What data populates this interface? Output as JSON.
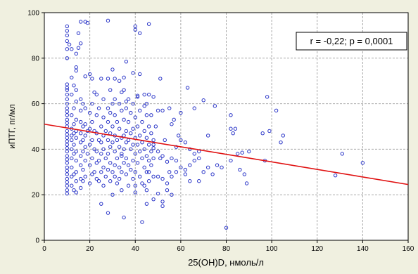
{
  "chart_data": {
    "type": "scatter",
    "title": "",
    "xlabel": "25(OH)D, нмоль/л",
    "ylabel": "иПТГ, пг/мл",
    "xlim": [
      0,
      160
    ],
    "ylim": [
      0,
      100
    ],
    "xticks": [
      0,
      20,
      40,
      60,
      80,
      100,
      120,
      140,
      160
    ],
    "yticks": [
      0,
      20,
      40,
      60,
      80,
      100
    ],
    "grid": true,
    "annotation": "r = -0,22; p = 0,0001",
    "colors": {
      "points": "#2a35c8",
      "fit_line": "#e01010",
      "plot_bg": "#ffffff",
      "grid": "#aaaaaa",
      "page_bg": "#f0f0e0"
    },
    "fit_line": {
      "x": [
        0,
        160
      ],
      "y": [
        51,
        24.5
      ]
    },
    "points": [
      [
        10,
        94.0
      ],
      [
        10,
        92.0
      ],
      [
        10,
        90.0
      ],
      [
        10,
        87.5
      ],
      [
        10,
        84.0
      ],
      [
        12,
        84.0
      ],
      [
        10,
        80.0
      ],
      [
        15,
        91.0
      ],
      [
        15,
        84.5
      ],
      [
        16,
        86.5
      ],
      [
        16,
        96.0
      ],
      [
        11,
        86.0
      ],
      [
        14,
        82.0
      ],
      [
        14,
        76.0
      ],
      [
        14,
        74.5
      ],
      [
        10,
        68.5
      ],
      [
        10,
        67.0
      ],
      [
        10,
        66.0
      ],
      [
        10,
        64.0
      ],
      [
        10,
        62.0
      ],
      [
        10,
        60.0
      ],
      [
        10,
        58.0
      ],
      [
        10,
        56.5
      ],
      [
        10,
        55.0
      ],
      [
        10,
        53.0
      ],
      [
        10,
        51.5
      ],
      [
        10,
        50.0
      ],
      [
        10,
        48.0
      ],
      [
        10,
        46.5
      ],
      [
        10,
        45.0
      ],
      [
        10,
        43.5
      ],
      [
        10,
        42.0
      ],
      [
        10,
        40.5
      ],
      [
        10,
        39.0
      ],
      [
        10,
        37.0
      ],
      [
        10,
        35.5
      ],
      [
        10,
        34.0
      ],
      [
        10,
        32.0
      ],
      [
        10,
        30.5
      ],
      [
        10,
        29.0
      ],
      [
        10,
        27.0
      ],
      [
        10,
        25.5
      ],
      [
        10,
        24.0
      ],
      [
        10,
        22.0
      ],
      [
        10,
        20.5
      ],
      [
        12,
        64.0
      ],
      [
        12,
        55.0
      ],
      [
        12,
        49.0
      ],
      [
        12,
        46.0
      ],
      [
        12,
        44.0
      ],
      [
        12,
        40.0
      ],
      [
        12,
        36.0
      ],
      [
        12,
        32.0
      ],
      [
        12,
        28.0
      ],
      [
        12,
        24.0
      ],
      [
        13,
        68.0
      ],
      [
        13,
        58.0
      ],
      [
        13,
        51.0
      ],
      [
        13,
        47.0
      ],
      [
        13,
        42.0
      ],
      [
        13,
        38.0
      ],
      [
        13,
        29.0
      ],
      [
        13,
        22.0
      ],
      [
        14,
        66.0
      ],
      [
        14,
        61.0
      ],
      [
        14,
        53.0
      ],
      [
        14,
        48.0
      ],
      [
        14,
        45.0
      ],
      [
        14,
        39.0
      ],
      [
        14,
        35.0
      ],
      [
        14,
        30.0
      ],
      [
        14,
        26.0
      ],
      [
        14,
        21.0
      ],
      [
        16,
        62.0
      ],
      [
        16,
        57.0
      ],
      [
        16,
        52.0
      ],
      [
        16,
        47.0
      ],
      [
        16,
        43.0
      ],
      [
        16,
        37.0
      ],
      [
        16,
        33.0
      ],
      [
        16,
        27.0
      ],
      [
        16,
        23.0
      ],
      [
        17,
        60.0
      ],
      [
        17,
        50.0
      ],
      [
        17,
        44.0
      ],
      [
        17,
        39.0
      ],
      [
        17,
        31.0
      ],
      [
        17,
        26.0
      ],
      [
        18,
        72.0
      ],
      [
        18,
        58.0
      ],
      [
        18,
        51.0
      ],
      [
        18,
        46.0
      ],
      [
        18,
        41.0
      ],
      [
        18,
        35.0
      ],
      [
        18,
        28.0
      ],
      [
        19,
        48.0
      ],
      [
        19,
        38.0
      ],
      [
        20,
        56.0
      ],
      [
        20,
        49.0
      ],
      [
        20,
        42.0
      ],
      [
        20,
        33.0
      ],
      [
        20,
        25.0
      ],
      [
        21,
        71.0
      ],
      [
        21,
        60.0
      ],
      [
        21,
        52.0
      ],
      [
        21,
        44.0
      ],
      [
        21,
        36.0
      ],
      [
        21,
        29.0
      ],
      [
        22,
        48.0
      ],
      [
        22,
        40.0
      ],
      [
        22,
        30.0
      ],
      [
        23,
        64.0
      ],
      [
        23,
        55.0
      ],
      [
        23,
        47.0
      ],
      [
        23,
        39.0
      ],
      [
        23,
        34.0
      ],
      [
        23,
        27.0
      ],
      [
        24,
        58.0
      ],
      [
        24,
        44.0
      ],
      [
        24,
        35.0
      ],
      [
        24,
        26.0
      ],
      [
        25,
        50.0
      ],
      [
        25,
        43.0
      ],
      [
        25,
        38.0
      ],
      [
        25,
        30.0
      ],
      [
        25,
        16.0
      ],
      [
        26,
        62.0
      ],
      [
        26,
        54.0
      ],
      [
        26,
        46.0
      ],
      [
        26,
        40.0
      ],
      [
        26,
        32.0
      ],
      [
        26,
        24.0
      ],
      [
        27,
        48.0
      ],
      [
        27,
        36.0
      ],
      [
        27,
        28.0
      ],
      [
        28,
        58.0
      ],
      [
        28,
        52.0
      ],
      [
        28,
        44.0
      ],
      [
        28,
        38.0
      ],
      [
        28,
        31.0
      ],
      [
        28,
        12.0
      ],
      [
        29,
        66.0
      ],
      [
        29,
        56.0
      ],
      [
        29,
        47.0
      ],
      [
        29,
        41.0
      ],
      [
        29,
        34.0
      ],
      [
        29,
        26.0
      ],
      [
        30,
        50.0
      ],
      [
        30,
        43.0
      ],
      [
        30,
        30.0
      ],
      [
        30,
        20.0
      ],
      [
        31,
        62.0
      ],
      [
        31,
        55.0
      ],
      [
        31,
        46.0
      ],
      [
        31,
        39.0
      ],
      [
        31,
        33.0
      ],
      [
        31,
        28.0
      ],
      [
        32,
        52.0
      ],
      [
        32,
        44.0
      ],
      [
        32,
        36.0
      ],
      [
        32,
        25.0
      ],
      [
        33,
        60.0
      ],
      [
        33,
        49.0
      ],
      [
        33,
        41.0
      ],
      [
        33,
        32.0
      ],
      [
        33,
        27.0
      ],
      [
        34,
        57.0
      ],
      [
        34,
        45.0
      ],
      [
        34,
        38.0
      ],
      [
        34,
        30.0
      ],
      [
        34,
        22.0
      ],
      [
        35,
        66.0
      ],
      [
        35,
        53.0
      ],
      [
        35,
        46.0
      ],
      [
        35,
        40.0
      ],
      [
        35,
        34.0
      ],
      [
        35,
        10.0
      ],
      [
        36,
        58.0
      ],
      [
        36,
        48.0
      ],
      [
        36,
        43.0
      ],
      [
        36,
        36.0
      ],
      [
        36,
        29.0
      ],
      [
        37,
        62.0
      ],
      [
        37,
        52.0
      ],
      [
        37,
        44.0
      ],
      [
        37,
        33.0
      ],
      [
        37,
        24.0
      ],
      [
        38,
        56.0
      ],
      [
        38,
        47.0
      ],
      [
        38,
        40.0
      ],
      [
        38,
        31.0
      ],
      [
        39,
        60.0
      ],
      [
        39,
        49.0
      ],
      [
        39,
        42.0
      ],
      [
        39,
        35.0
      ],
      [
        39,
        27.0
      ],
      [
        40,
        54.0
      ],
      [
        40,
        45.0
      ],
      [
        40,
        38.0
      ],
      [
        40,
        30.0
      ],
      [
        40,
        21.0
      ],
      [
        41,
        63.0
      ],
      [
        41,
        50.0
      ],
      [
        41,
        42.0
      ],
      [
        41,
        34.0
      ],
      [
        42,
        57.0
      ],
      [
        42,
        46.0
      ],
      [
        42,
        39.0
      ],
      [
        42,
        28.0
      ],
      [
        43,
        52.0
      ],
      [
        43,
        43.0
      ],
      [
        43,
        36.0
      ],
      [
        43,
        25.0
      ],
      [
        44,
        59.0
      ],
      [
        44,
        48.0
      ],
      [
        44,
        40.0
      ],
      [
        44,
        32.0
      ],
      [
        45,
        55.0
      ],
      [
        45,
        45.0
      ],
      [
        45,
        37.0
      ],
      [
        45,
        30.0
      ],
      [
        45,
        22.0
      ],
      [
        46,
        50.0
      ],
      [
        46,
        42.0
      ],
      [
        46,
        35.0
      ],
      [
        46,
        26.0
      ],
      [
        47,
        47.0
      ],
      [
        47,
        39.0
      ],
      [
        47,
        33.0
      ],
      [
        48,
        44.0
      ],
      [
        48,
        36.0
      ],
      [
        48,
        28.0
      ],
      [
        12,
        71.5
      ],
      [
        20,
        73.0
      ],
      [
        25,
        71.0
      ],
      [
        28,
        71.0
      ],
      [
        31,
        71.0
      ],
      [
        35,
        71.5
      ],
      [
        34,
        65.0
      ],
      [
        36,
        61.0
      ],
      [
        30,
        60.0
      ],
      [
        22,
        65.0
      ],
      [
        18,
        96.0
      ],
      [
        19,
        95.5
      ],
      [
        28,
        96.5
      ],
      [
        40,
        94.0
      ],
      [
        40,
        92.5
      ],
      [
        46,
        95.0
      ],
      [
        42,
        91.0
      ],
      [
        36,
        78.5
      ],
      [
        30,
        75.0
      ],
      [
        39,
        73.5
      ],
      [
        42,
        73.0
      ],
      [
        33,
        70.0
      ],
      [
        41,
        63.5
      ],
      [
        44,
        64.0
      ],
      [
        46,
        64.0
      ],
      [
        48,
        63.0
      ],
      [
        51,
        71.0
      ],
      [
        45,
        60.0
      ],
      [
        47,
        55.0
      ],
      [
        50,
        57.0
      ],
      [
        52,
        57.0
      ],
      [
        49,
        50.0
      ],
      [
        55,
        58.0
      ],
      [
        56,
        51.0
      ],
      [
        57,
        53.0
      ],
      [
        60,
        56.0
      ],
      [
        63,
        67.0
      ],
      [
        66,
        58.0
      ],
      [
        70,
        61.5
      ],
      [
        48,
        40.5
      ],
      [
        50,
        39.0
      ],
      [
        52,
        37.0
      ],
      [
        54,
        34.5
      ],
      [
        56,
        36.0
      ],
      [
        58,
        35.0
      ],
      [
        60,
        32.0
      ],
      [
        62,
        31.0
      ],
      [
        64,
        33.0
      ],
      [
        66,
        35.0
      ],
      [
        68,
        36.0
      ],
      [
        70,
        30.0
      ],
      [
        72,
        32.0
      ],
      [
        74,
        29.0
      ],
      [
        76,
        33.0
      ],
      [
        52,
        27.0
      ],
      [
        54,
        25.0
      ],
      [
        56,
        28.0
      ],
      [
        58,
        30.0
      ],
      [
        62,
        29.0
      ],
      [
        64,
        26.0
      ],
      [
        68,
        26.0
      ],
      [
        50,
        20.5
      ],
      [
        52,
        17.0
      ],
      [
        54,
        22.0
      ],
      [
        56,
        20.0
      ],
      [
        60,
        44.0
      ],
      [
        62,
        43.0
      ],
      [
        64,
        40.0
      ],
      [
        66,
        38.0
      ],
      [
        68,
        39.0
      ],
      [
        52,
        15.0
      ],
      [
        50,
        28.0
      ],
      [
        45,
        16.0
      ],
      [
        40,
        24.0
      ],
      [
        43,
        8.0
      ],
      [
        48,
        18.0
      ],
      [
        72,
        46.0
      ],
      [
        78,
        32.0
      ],
      [
        80,
        5.5
      ],
      [
        82,
        35.0
      ],
      [
        83,
        47.0
      ],
      [
        84,
        49.0
      ],
      [
        85,
        38.0
      ],
      [
        86,
        31.0
      ],
      [
        87,
        38.5
      ],
      [
        88,
        29.0
      ],
      [
        89,
        25.0
      ],
      [
        90,
        39.0
      ],
      [
        82,
        55.0
      ],
      [
        96,
        47.0
      ],
      [
        97,
        35.0
      ],
      [
        98,
        63.0
      ],
      [
        99,
        48.0
      ],
      [
        102,
        57.0
      ],
      [
        104,
        43.0
      ],
      [
        105,
        46.0
      ],
      [
        128,
        28.5
      ],
      [
        131,
        38.0
      ],
      [
        140,
        34.0
      ],
      [
        82,
        49.0
      ],
      [
        75,
        59.0
      ],
      [
        55,
        30.0
      ],
      [
        59,
        46.0
      ],
      [
        58,
        41.0
      ],
      [
        53,
        44.0
      ],
      [
        51,
        36.0
      ],
      [
        46,
        30.0
      ],
      [
        44,
        24.0
      ],
      [
        48,
        42.0
      ],
      [
        34,
        37.0
      ]
    ]
  }
}
